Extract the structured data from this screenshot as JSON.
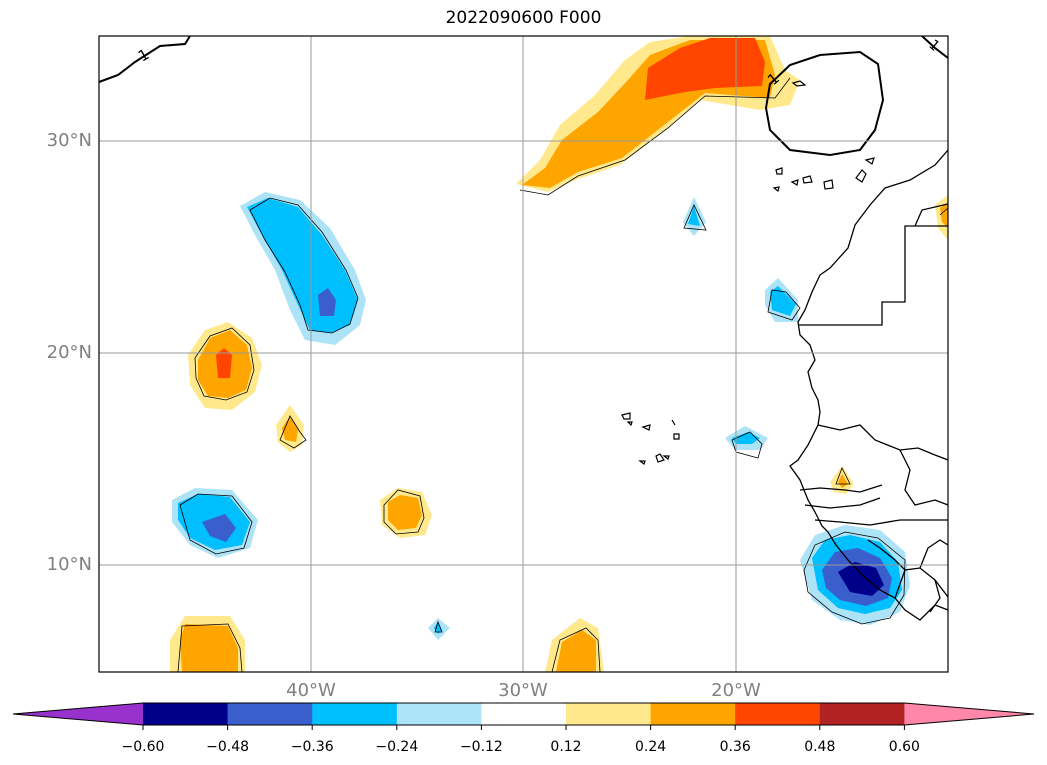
{
  "title": "2022090600 F000",
  "latitude_labels": [
    "30°N",
    "20°N",
    "10°N"
  ],
  "longitude_labels": [
    "40°W",
    "30°W",
    "20°W"
  ],
  "contour_label": "1",
  "colorbar": {
    "tick_labels": [
      "−0.60",
      "−0.48",
      "−0.36",
      "−0.24",
      "−0.12",
      "0.12",
      "0.24",
      "0.36",
      "0.48",
      "0.60"
    ],
    "colors": [
      "#9932CC",
      "#00008B",
      "#3A5FCD",
      "#00BFFF",
      "#ADE3F7",
      "#FFFFFF",
      "#FFE98C",
      "#FFA500",
      "#FF4500",
      "#B22222",
      "#FF88AA"
    ],
    "extend": "both"
  },
  "map": {
    "lat_range": [
      5,
      35
    ],
    "lon_range": [
      -50,
      -10
    ],
    "gridlines_lat": [
      10,
      20,
      30
    ],
    "gridlines_lon": [
      -40,
      -30,
      -20
    ]
  }
}
